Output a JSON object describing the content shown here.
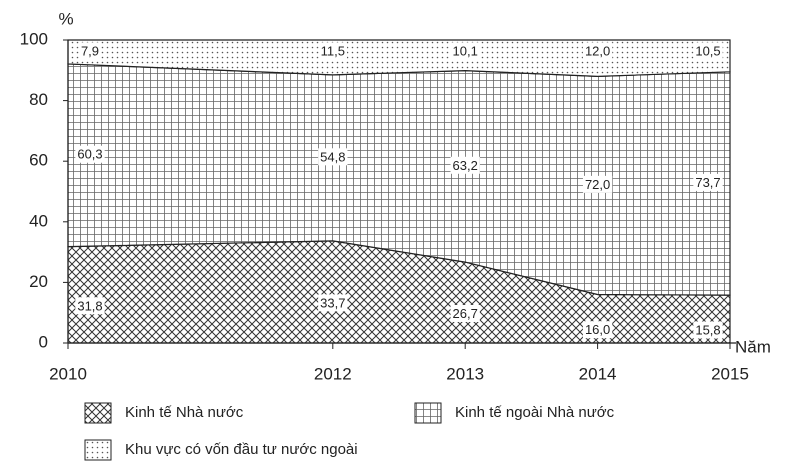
{
  "chart_data": {
    "type": "stacked_area",
    "y_label": "%",
    "x_label": "Năm",
    "x": [
      2010,
      2012,
      2013,
      2014,
      2015
    ],
    "xlim": [
      2010,
      2015
    ],
    "xticks": [
      2010,
      2012,
      2013,
      2014,
      2015
    ],
    "ylim": [
      0,
      100
    ],
    "yticks": [
      0,
      20,
      40,
      60,
      80,
      100
    ],
    "series": [
      {
        "name": "Kinh tế Nhà nước",
        "color": "#222222",
        "pattern": "crosshatch",
        "values": [
          31.8,
          33.7,
          26.7,
          16.0,
          15.8
        ],
        "value_labels": [
          "31,8",
          "33,7",
          "26,7",
          "16,0",
          "15,8"
        ]
      },
      {
        "name": "Kinh tế ngoài Nhà nước",
        "color": "#222222",
        "pattern": "grid",
        "values": [
          60.3,
          54.8,
          63.2,
          72.0,
          73.7
        ],
        "value_labels": [
          "60,3",
          "54,8",
          "63,2",
          "72,0",
          "73,7"
        ]
      },
      {
        "name": "Khu vực có vốn đầu tư nước ngoài",
        "color": "#222222",
        "pattern": "dots",
        "values": [
          7.9,
          11.5,
          10.1,
          12.0,
          10.5
        ],
        "value_labels": [
          "7,9",
          "11,5",
          "10,1",
          "12,0",
          "10,5"
        ]
      }
    ]
  }
}
